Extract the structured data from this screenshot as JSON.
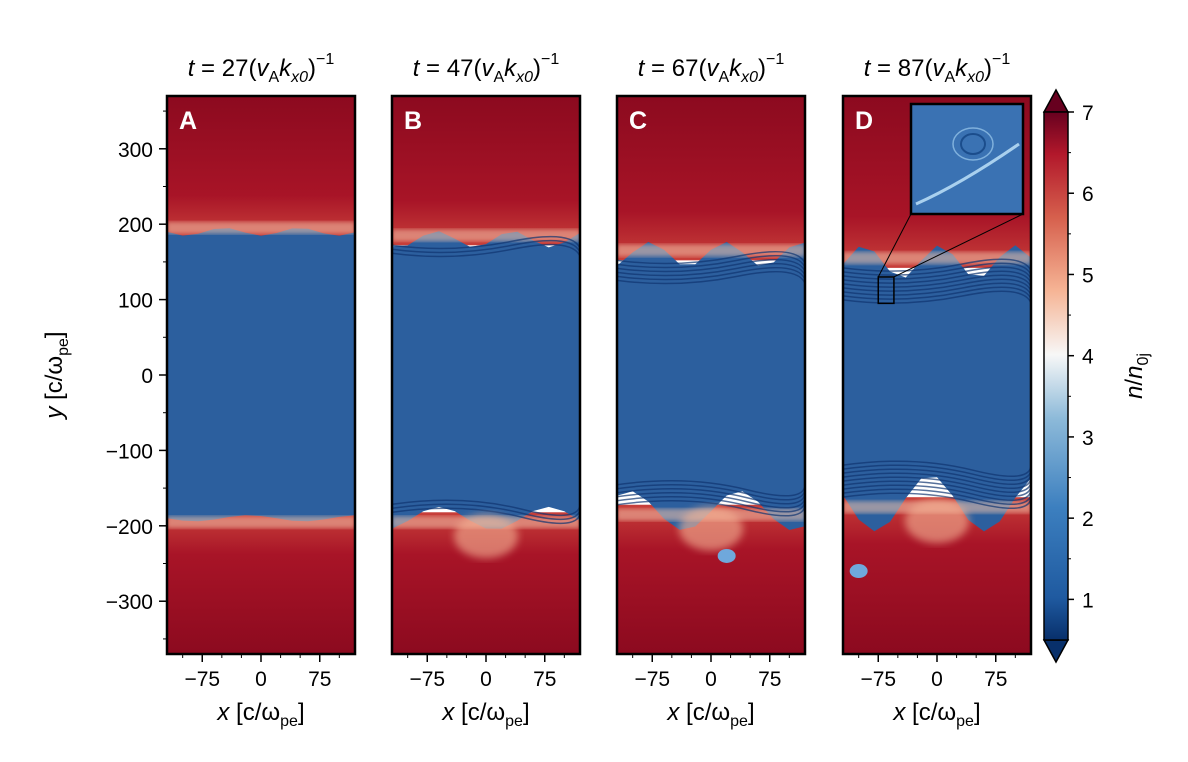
{
  "chart_data": [
    {
      "type": "heatmap",
      "panel": "A",
      "title": "t = 27(v_A k_x0)^-1",
      "time": 27,
      "xlabel": "x [c/ω_pe]",
      "ylabel": "y [c/ω_pe]",
      "xlim": [
        -120,
        120
      ],
      "ylim": [
        -370,
        370
      ],
      "xticks": [
        -75,
        0,
        75
      ],
      "yticks": [
        300,
        200,
        100,
        0,
        -100,
        -200,
        -300
      ],
      "upper_interface_y": 190,
      "lower_interface_y": -190,
      "blob": null
    },
    {
      "type": "heatmap",
      "panel": "B",
      "title": "t = 47(v_A k_x0)^-1",
      "time": 47,
      "xlabel": "x [c/ω_pe]",
      "xlim": [
        -120,
        120
      ],
      "ylim": [
        -370,
        370
      ],
      "xticks": [
        -75,
        0,
        75
      ],
      "upper_interface_y": 180,
      "lower_interface_y": -190,
      "blob": null
    },
    {
      "type": "heatmap",
      "panel": "C",
      "title": "t = 67(v_A k_x0)^-1",
      "time": 67,
      "xlabel": "x [c/ω_pe]",
      "xlim": [
        -120,
        120
      ],
      "ylim": [
        -370,
        370
      ],
      "xticks": [
        -75,
        0,
        75
      ],
      "upper_interface_y": 160,
      "lower_interface_y": -180,
      "blob": [
        20,
        -240
      ]
    },
    {
      "type": "heatmap",
      "panel": "D",
      "title": "t = 87(v_A k_x0)^-1",
      "time": 87,
      "xlabel": "x [c/ω_pe]",
      "xlim": [
        -120,
        120
      ],
      "ylim": [
        -370,
        370
      ],
      "xticks": [
        -75,
        0,
        75
      ],
      "upper_interface_y": 150,
      "lower_interface_y": -170,
      "blob": [
        -100,
        -260
      ],
      "inset_region": {
        "x": [
          -75,
          -55
        ],
        "y": [
          95,
          130
        ]
      }
    }
  ],
  "colorbar": {
    "label": "n/n_0j",
    "min": 0.5,
    "max": 7,
    "ticks": [
      1,
      2,
      3,
      4,
      5,
      6,
      7
    ],
    "colors": [
      "#08306b",
      "#2b6cb0",
      "#6fa8dc",
      "#f7f7f7",
      "#f4a582",
      "#d6604d",
      "#67001f"
    ]
  },
  "labels": {
    "ytick_labels": [
      "300",
      "200",
      "100",
      "0",
      "−100",
      "−200",
      "−300"
    ],
    "xtick_labels": [
      "−75",
      "0",
      "75"
    ],
    "panel_letters": [
      "A",
      "B",
      "C",
      "D"
    ],
    "title_time_values": [
      "27",
      "47",
      "67",
      "87"
    ],
    "ylabel_main": "y",
    "ylabel_unit_open": "[c/ω",
    "ylabel_unit_sub": "pe",
    "ylabel_unit_close": "]",
    "xlabel_main": "x",
    "xlabel_unit_open": "[c/ω",
    "xlabel_unit_sub": "pe",
    "xlabel_unit_close": "]",
    "title_t": "t",
    "title_eq": " = ",
    "title_paren_open": "(",
    "title_v": "v",
    "title_v_sub": "A",
    "title_k": "k",
    "title_k_sub": "x0",
    "title_paren_close": ")",
    "title_exp": "−1",
    "cbar_n": "n",
    "cbar_slash": "/",
    "cbar_n0": "n",
    "cbar_n0_sub": "0j",
    "cbar_tick_labels": [
      "1",
      "2",
      "3",
      "4",
      "5",
      "6",
      "7"
    ]
  }
}
